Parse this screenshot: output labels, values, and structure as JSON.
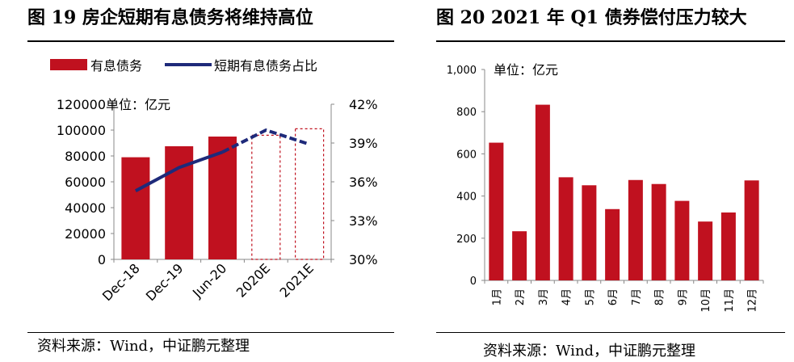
{
  "left_panel": {
    "title": "图 19    房企短期有息债务将维持高位",
    "source": "资料来源：Wind，中证鹏元整理"
  },
  "right_panel": {
    "title": "图 20    2021 年 Q1 债券偿付压力较大",
    "source": "资料来源：Wind，中证鹏元整理"
  },
  "colors": {
    "bar": "#c0111f",
    "line": "#1e2a7a",
    "axis": "#888888"
  },
  "chart_data": [
    {
      "type": "bar",
      "unit_note": "单位：亿元",
      "legend": [
        "有息债务",
        "短期有息债务占比"
      ],
      "categories": [
        "Dec-18",
        "Dec-19",
        "Jun-20",
        "2020E",
        "2021E"
      ],
      "series": [
        {
          "name": "有息债务",
          "axis": "left",
          "values": [
            79000,
            87500,
            95000,
            96000,
            101000
          ],
          "estimated": [
            false,
            false,
            false,
            true,
            true
          ]
        },
        {
          "name": "短期有息债务占比",
          "type": "line",
          "axis": "right",
          "values": [
            35.3,
            37.1,
            38.3,
            40.0,
            38.9
          ]
        }
      ],
      "y_left": {
        "ylim": [
          0,
          120000
        ],
        "ticks": [
          "0",
          "20000",
          "40000",
          "60000",
          "80000",
          "100000",
          "120000"
        ]
      },
      "y_right": {
        "ylim": [
          30,
          42
        ],
        "ticks": [
          "30%",
          "33%",
          "36%",
          "39%",
          "42%"
        ]
      },
      "grid": false,
      "legend_position": "top"
    },
    {
      "type": "bar",
      "unit_note": "单位：亿元",
      "categories": [
        "1月",
        "2月",
        "3月",
        "4月",
        "5月",
        "6月",
        "7月",
        "8月",
        "9月",
        "10月",
        "11月",
        "12月"
      ],
      "series": [
        {
          "name": "",
          "values": [
            653,
            233,
            833,
            489,
            451,
            338,
            476,
            457,
            377,
            279,
            322,
            474
          ]
        }
      ],
      "ylim": [
        0,
        1000
      ],
      "ticks": [
        "0",
        "200",
        "400",
        "600",
        "800",
        "1,000"
      ],
      "grid": false
    }
  ]
}
